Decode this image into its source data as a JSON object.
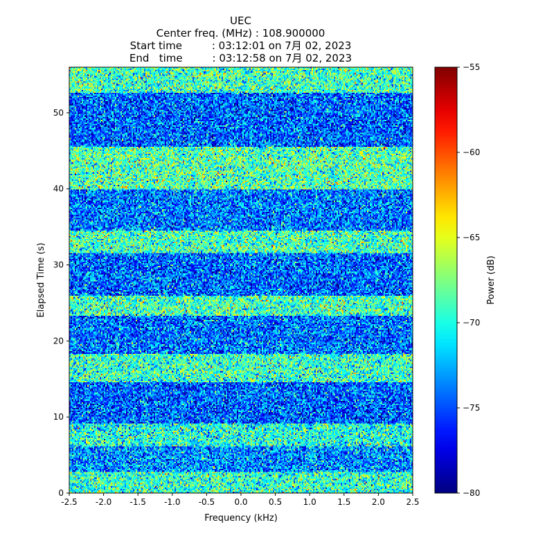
{
  "chart_data": {
    "type": "heatmap",
    "title_lines": [
      "UEC",
      "Center freq. (MHz) : 108.900000",
      "Start time         : 03:12:01 on 7月 02, 2023",
      "End   time         : 03:12:58 on 7月 02, 2023"
    ],
    "xlabel": "Frequency (kHz)",
    "ylabel": "Elapsed Time (s)",
    "xlim": [
      -2.5,
      2.5
    ],
    "ylim": [
      0,
      56
    ],
    "x_ticks": [
      {
        "value": -2.5,
        "label": "-2.5"
      },
      {
        "value": -2.0,
        "label": "-2.0"
      },
      {
        "value": -1.5,
        "label": "-1.5"
      },
      {
        "value": -1.0,
        "label": "-1.0"
      },
      {
        "value": -0.5,
        "label": "-0.5"
      },
      {
        "value": 0.0,
        "label": "0.0"
      },
      {
        "value": 0.5,
        "label": "0.5"
      },
      {
        "value": 1.0,
        "label": "1.0"
      },
      {
        "value": 1.5,
        "label": "1.5"
      },
      {
        "value": 2.0,
        "label": "2.0"
      },
      {
        "value": 2.5,
        "label": "2.5"
      }
    ],
    "y_ticks": [
      {
        "value": 0,
        "label": "0"
      },
      {
        "value": 10,
        "label": "10"
      },
      {
        "value": 20,
        "label": "20"
      },
      {
        "value": 30,
        "label": "30"
      },
      {
        "value": 40,
        "label": "40"
      },
      {
        "value": 50,
        "label": "50"
      }
    ],
    "colorbar": {
      "label": "Power (dB)",
      "colormap": "jet",
      "range": [
        -80,
        -55
      ],
      "ticks": [
        {
          "value": -55,
          "label": "−55"
        },
        {
          "value": -60,
          "label": "−60"
        },
        {
          "value": -65,
          "label": "−65"
        },
        {
          "value": -70,
          "label": "−70"
        },
        {
          "value": -75,
          "label": "−75"
        },
        {
          "value": -80,
          "label": "−80"
        }
      ]
    },
    "bands": [
      {
        "t0": 0.0,
        "t1": 2.8,
        "mean_db": -69.5
      },
      {
        "t0": 2.8,
        "t1": 6.2,
        "mean_db": -73.5
      },
      {
        "t0": 6.2,
        "t1": 9.2,
        "mean_db": -70.0
      },
      {
        "t0": 9.2,
        "t1": 14.6,
        "mean_db": -74.5
      },
      {
        "t0": 14.6,
        "t1": 18.2,
        "mean_db": -69.3
      },
      {
        "t0": 18.2,
        "t1": 23.4,
        "mean_db": -74.2
      },
      {
        "t0": 23.4,
        "t1": 26.0,
        "mean_db": -69.0
      },
      {
        "t0": 26.0,
        "t1": 31.5,
        "mean_db": -74.5
      },
      {
        "t0": 31.5,
        "t1": 34.6,
        "mean_db": -69.0
      },
      {
        "t0": 34.6,
        "t1": 40.0,
        "mean_db": -74.0
      },
      {
        "t0": 40.0,
        "t1": 45.6,
        "mean_db": -68.6
      },
      {
        "t0": 45.6,
        "t1": 52.6,
        "mean_db": -74.5
      },
      {
        "t0": 52.6,
        "t1": 56.0,
        "mean_db": -69.0
      }
    ],
    "noise_std_db": 3.0
  }
}
